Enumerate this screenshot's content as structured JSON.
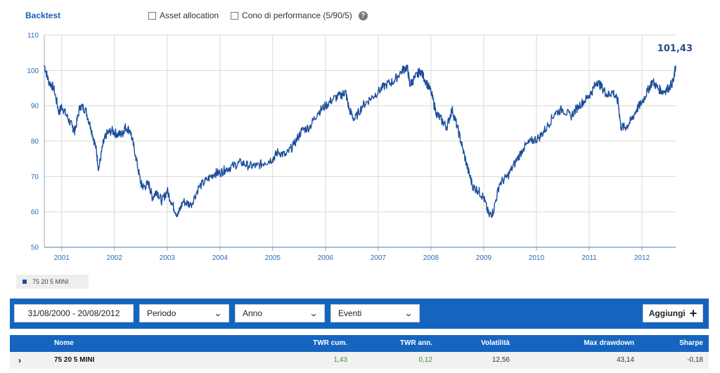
{
  "header": {
    "title": "Backtest",
    "options": [
      {
        "label": "Asset allocation",
        "checked": false
      },
      {
        "label": "Cono di performance (5/90/5)",
        "checked": false
      }
    ],
    "help_icon": "question-circle-icon"
  },
  "chart_data": {
    "type": "line",
    "title": "",
    "xlabel": "",
    "ylabel": "",
    "ylim": [
      50,
      110
    ],
    "yticks": [
      "50",
      "60",
      "70",
      "80",
      "90",
      "100",
      "110"
    ],
    "xticks": [
      "2001",
      "2002",
      "2003",
      "2004",
      "2005",
      "2006",
      "2007",
      "2008",
      "2009",
      "2010",
      "2011",
      "2012"
    ],
    "xrange": [
      2000.67,
      2012.64
    ],
    "grid": true,
    "line_color": "#1c4e9c",
    "last_value_label": "101,43",
    "series": [
      {
        "name": "75 20 5 MINI",
        "x": [
          2000.67,
          2000.75,
          2000.85,
          2000.95,
          2001.0,
          2001.1,
          2001.2,
          2001.25,
          2001.35,
          2001.45,
          2001.55,
          2001.65,
          2001.7,
          2001.78,
          2001.85,
          2001.95,
          2002.05,
          2002.15,
          2002.2,
          2002.3,
          2002.4,
          2002.5,
          2002.55,
          2002.65,
          2002.72,
          2002.8,
          2002.9,
          2003.0,
          2003.1,
          2003.2,
          2003.3,
          2003.45,
          2003.6,
          2003.75,
          2003.9,
          2004.0,
          2004.1,
          2004.25,
          2004.4,
          2004.55,
          2004.7,
          2004.85,
          2005.0,
          2005.1,
          2005.25,
          2005.4,
          2005.55,
          2005.7,
          2005.85,
          2006.0,
          2006.15,
          2006.3,
          2006.38,
          2006.45,
          2006.55,
          2006.7,
          2006.85,
          2007.0,
          2007.15,
          2007.3,
          2007.45,
          2007.55,
          2007.6,
          2007.7,
          2007.8,
          2007.9,
          2008.0,
          2008.1,
          2008.2,
          2008.3,
          2008.4,
          2008.5,
          2008.6,
          2008.7,
          2008.8,
          2008.9,
          2009.0,
          2009.1,
          2009.18,
          2009.3,
          2009.45,
          2009.6,
          2009.75,
          2009.9,
          2010.05,
          2010.2,
          2010.35,
          2010.5,
          2010.65,
          2010.8,
          2010.95,
          2011.05,
          2011.15,
          2011.25,
          2011.35,
          2011.45,
          2011.55,
          2011.6,
          2011.7,
          2011.8,
          2011.9,
          2012.0,
          2012.1,
          2012.2,
          2012.3,
          2012.4,
          2012.5,
          2012.6,
          2012.64
        ],
        "y": [
          101.5,
          97,
          95,
          88,
          90,
          87,
          84,
          83,
          90,
          89,
          84,
          78,
          72,
          79,
          82,
          83,
          82,
          82,
          84,
          83,
          76,
          68,
          67,
          68,
          64,
          66,
          63,
          66,
          62,
          59,
          63,
          62,
          67,
          69,
          71,
          71,
          72,
          73,
          74,
          73,
          73,
          74,
          75,
          77,
          76,
          79,
          83,
          84,
          88,
          90,
          92,
          93,
          94,
          89,
          86,
          90,
          92,
          94,
          96,
          97,
          100,
          101,
          96,
          98,
          100,
          97,
          94,
          88,
          86,
          84,
          89,
          84,
          78,
          72,
          67,
          66,
          64,
          59,
          60,
          68,
          70,
          74,
          78,
          80,
          81,
          84,
          88,
          89,
          87,
          90,
          92,
          94,
          97,
          95,
          93,
          94,
          91,
          84,
          84,
          86,
          89,
          91,
          94,
          97,
          95,
          94,
          95,
          97,
          101.43
        ]
      }
    ]
  },
  "legend": {
    "label": "75 20 5 MINI",
    "color": "#1c4e9c"
  },
  "toolbar": {
    "date_range": "31/08/2000 - 20/08/2012",
    "periodo": "Periodo",
    "anno": "Anno",
    "eventi": "Eventi",
    "add_label": "Aggiungi"
  },
  "table": {
    "headers": {
      "nome": "Nome",
      "twr_cum": "TWR cum.",
      "twr_ann": "TWR ann.",
      "volatilita": "Volatilità",
      "max_drawdown": "Max drawdown",
      "sharpe": "Sharpe"
    },
    "rows": [
      {
        "nome": "75 20 5 MINI",
        "twr_cum": "1,43",
        "twr_ann": "0,12",
        "volatilita": "12,56",
        "max_drawdown": "43,14",
        "sharpe": "-0,18"
      }
    ]
  }
}
